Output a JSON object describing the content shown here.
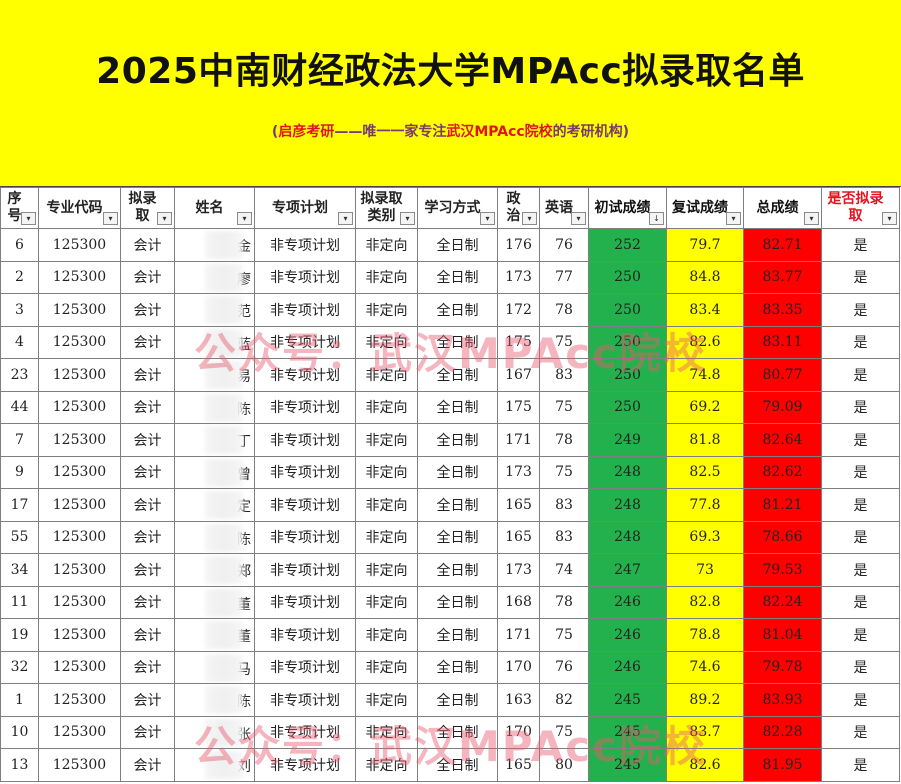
{
  "header": {
    "title": "2025中南财经政法大学MPAcc拟录取名单",
    "subtitle_part1": "(",
    "subtitle_brand": "启彦考研",
    "subtitle_part2": "——唯一一家专注",
    "subtitle_school": "武汉MPAcc院校",
    "subtitle_part3": "的考研机构)"
  },
  "columns": [
    {
      "label": "序号",
      "filter": "▾"
    },
    {
      "label": "专业代码",
      "filter": "▾"
    },
    {
      "label": "拟录取",
      "filter": "▾"
    },
    {
      "label": "姓名",
      "filter": "▾"
    },
    {
      "label": "专项计划",
      "filter": "▾"
    },
    {
      "label": "拟录取类别",
      "filter": "▾"
    },
    {
      "label": "学习方式",
      "filter": "▾"
    },
    {
      "label": "政治",
      "filter": "▾"
    },
    {
      "label": "英语",
      "filter": "▾"
    },
    {
      "label": "初试成绩",
      "filter": "↓"
    },
    {
      "label": "复试成绩",
      "filter": "▾"
    },
    {
      "label": "总成绩",
      "filter": "▾"
    },
    {
      "label": "是否拟录取",
      "filter": "▾"
    }
  ],
  "rows": [
    {
      "no": "6",
      "code": "125300",
      "major": "会计",
      "name": "金",
      "plan": "非专项计划",
      "type": "非定向",
      "mode": "全日制",
      "politics": "176",
      "english": "76",
      "initial": "252",
      "retest": "79.7",
      "total": "82.71",
      "admit": "是"
    },
    {
      "no": "2",
      "code": "125300",
      "major": "会计",
      "name": "廖",
      "plan": "非专项计划",
      "type": "非定向",
      "mode": "全日制",
      "politics": "173",
      "english": "77",
      "initial": "250",
      "retest": "84.8",
      "total": "83.77",
      "admit": "是"
    },
    {
      "no": "3",
      "code": "125300",
      "major": "会计",
      "name": "范",
      "plan": "非专项计划",
      "type": "非定向",
      "mode": "全日制",
      "politics": "172",
      "english": "78",
      "initial": "250",
      "retest": "83.4",
      "total": "83.35",
      "admit": "是"
    },
    {
      "no": "4",
      "code": "125300",
      "major": "会计",
      "name": "蓝",
      "plan": "非专项计划",
      "type": "非定向",
      "mode": "全日制",
      "politics": "175",
      "english": "75",
      "initial": "250",
      "retest": "82.6",
      "total": "83.11",
      "admit": "是"
    },
    {
      "no": "23",
      "code": "125300",
      "major": "会计",
      "name": "易",
      "plan": "非专项计划",
      "type": "非定向",
      "mode": "全日制",
      "politics": "167",
      "english": "83",
      "initial": "250",
      "retest": "74.8",
      "total": "80.77",
      "admit": "是"
    },
    {
      "no": "44",
      "code": "125300",
      "major": "会计",
      "name": "陈",
      "plan": "非专项计划",
      "type": "非定向",
      "mode": "全日制",
      "politics": "175",
      "english": "75",
      "initial": "250",
      "retest": "69.2",
      "total": "79.09",
      "admit": "是"
    },
    {
      "no": "7",
      "code": "125300",
      "major": "会计",
      "name": "丁",
      "plan": "非专项计划",
      "type": "非定向",
      "mode": "全日制",
      "politics": "171",
      "english": "78",
      "initial": "249",
      "retest": "81.8",
      "total": "82.64",
      "admit": "是"
    },
    {
      "no": "9",
      "code": "125300",
      "major": "会计",
      "name": "曾",
      "plan": "非专项计划",
      "type": "非定向",
      "mode": "全日制",
      "politics": "173",
      "english": "75",
      "initial": "248",
      "retest": "82.5",
      "total": "82.62",
      "admit": "是"
    },
    {
      "no": "17",
      "code": "125300",
      "major": "会计",
      "name": "定",
      "plan": "非专项计划",
      "type": "非定向",
      "mode": "全日制",
      "politics": "165",
      "english": "83",
      "initial": "248",
      "retest": "77.8",
      "total": "81.21",
      "admit": "是"
    },
    {
      "no": "55",
      "code": "125300",
      "major": "会计",
      "name": "陈",
      "plan": "非专项计划",
      "type": "非定向",
      "mode": "全日制",
      "politics": "165",
      "english": "83",
      "initial": "248",
      "retest": "69.3",
      "total": "78.66",
      "admit": "是"
    },
    {
      "no": "34",
      "code": "125300",
      "major": "会计",
      "name": "郑",
      "plan": "非专项计划",
      "type": "非定向",
      "mode": "全日制",
      "politics": "173",
      "english": "74",
      "initial": "247",
      "retest": "73",
      "total": "79.53",
      "admit": "是"
    },
    {
      "no": "11",
      "code": "125300",
      "major": "会计",
      "name": "董",
      "plan": "非专项计划",
      "type": "非定向",
      "mode": "全日制",
      "politics": "168",
      "english": "78",
      "initial": "246",
      "retest": "82.8",
      "total": "82.24",
      "admit": "是"
    },
    {
      "no": "19",
      "code": "125300",
      "major": "会计",
      "name": "董",
      "plan": "非专项计划",
      "type": "非定向",
      "mode": "全日制",
      "politics": "171",
      "english": "75",
      "initial": "246",
      "retest": "78.8",
      "total": "81.04",
      "admit": "是"
    },
    {
      "no": "32",
      "code": "125300",
      "major": "会计",
      "name": "马",
      "plan": "非专项计划",
      "type": "非定向",
      "mode": "全日制",
      "politics": "170",
      "english": "76",
      "initial": "246",
      "retest": "74.6",
      "total": "79.78",
      "admit": "是"
    },
    {
      "no": "1",
      "code": "125300",
      "major": "会计",
      "name": "陈",
      "plan": "非专项计划",
      "type": "非定向",
      "mode": "全日制",
      "politics": "163",
      "english": "82",
      "initial": "245",
      "retest": "89.2",
      "total": "83.93",
      "admit": "是"
    },
    {
      "no": "10",
      "code": "125300",
      "major": "会计",
      "name": "张",
      "plan": "非专项计划",
      "type": "非定向",
      "mode": "全日制",
      "politics": "170",
      "english": "75",
      "initial": "245",
      "retest": "83.7",
      "total": "82.28",
      "admit": "是"
    },
    {
      "no": "13",
      "code": "125300",
      "major": "会计",
      "name": "刘",
      "plan": "非专项计划",
      "type": "非定向",
      "mode": "全日制",
      "politics": "165",
      "english": "80",
      "initial": "245",
      "retest": "82.6",
      "total": "81.95",
      "admit": "是"
    }
  ],
  "watermark": "公众号：武汉MPAcc院校",
  "colors": {
    "banner": "#ffff00",
    "initial_col": "#22b14c",
    "retest_col": "#ffff00",
    "total_col": "#ff0000",
    "brand_red": "#e0141c"
  }
}
